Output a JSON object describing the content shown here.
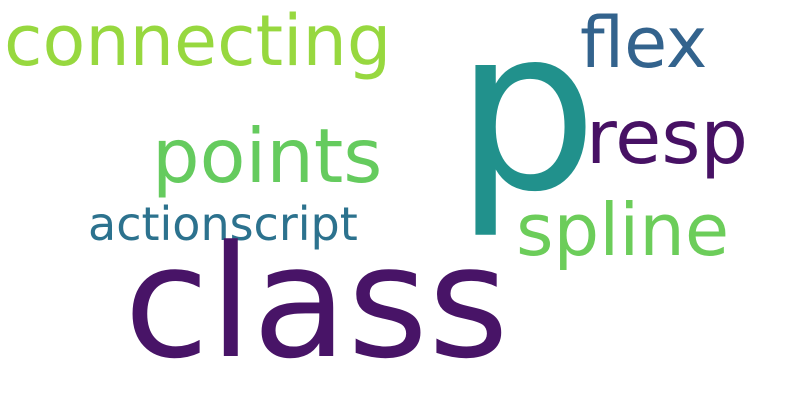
{
  "words": [
    {
      "key": "connecting",
      "text": "connecting",
      "color": "#97d83f"
    },
    {
      "key": "p",
      "text": "p",
      "color": "#21918c"
    },
    {
      "key": "flex",
      "text": "flex",
      "color": "#33638d"
    },
    {
      "key": "resp",
      "text": "resp",
      "color": "#471164"
    },
    {
      "key": "points",
      "text": "points",
      "color": "#65cb5e"
    },
    {
      "key": "actionscript",
      "text": "actionscript",
      "color": "#2c728e"
    },
    {
      "key": "spline",
      "text": "spline",
      "color": "#6ccd5a"
    },
    {
      "key": "class",
      "text": "class",
      "color": "#481467"
    }
  ]
}
